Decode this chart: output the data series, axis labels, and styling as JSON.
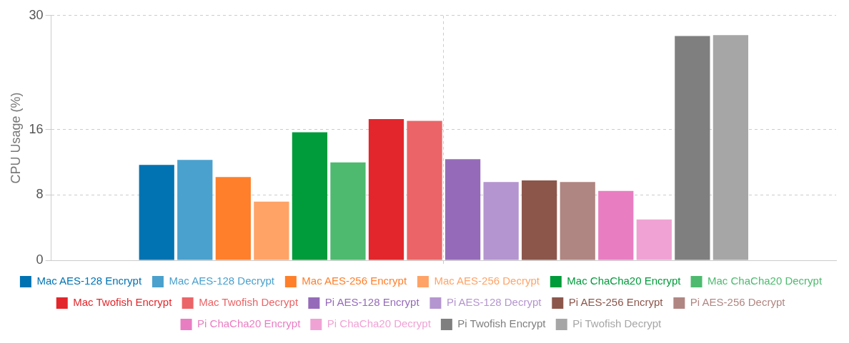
{
  "chart_data": {
    "type": "bar",
    "ylabel": "CPU Usage (%)",
    "categories": [
      null
    ],
    "ylim": [
      0,
      30
    ],
    "yticks": [
      0,
      8,
      16,
      30
    ],
    "grid": true,
    "legend": "bottom",
    "series": [
      {
        "name": "Mac AES-128 Encrypt",
        "color": "#0173b2",
        "values": [
          11.7
        ]
      },
      {
        "name": "Mac AES-128 Decrypt",
        "color": "#4aa1cd",
        "values": [
          12.3
        ]
      },
      {
        "name": "Mac AES-256 Encrypt",
        "color": "#ff7f2a",
        "values": [
          10.2
        ]
      },
      {
        "name": "Mac AES-256 Decrypt",
        "color": "#ffa366",
        "values": [
          7.2
        ]
      },
      {
        "name": "Mac ChaCha20 Encrypt",
        "color": "#009b3a",
        "values": [
          15.7
        ]
      },
      {
        "name": "Mac ChaCha20 Decrypt",
        "color": "#4dba6f",
        "values": [
          12.0
        ]
      },
      {
        "name": "Mac Twofish Encrypt",
        "color": "#e3262b",
        "values": [
          17.3
        ]
      },
      {
        "name": "Mac Twofish Decrypt",
        "color": "#eb6467",
        "values": [
          17.1
        ]
      },
      {
        "name": "Pi AES-128 Encrypt",
        "color": "#956bb9",
        "values": [
          12.4
        ]
      },
      {
        "name": "Pi AES-128 Decrypt",
        "color": "#b495cf",
        "values": [
          9.6
        ]
      },
      {
        "name": "Pi AES-256 Encrypt",
        "color": "#8c564b",
        "values": [
          9.8
        ]
      },
      {
        "name": "Pi AES-256 Decrypt",
        "color": "#b08682",
        "values": [
          9.6
        ]
      },
      {
        "name": "Pi ChaCha20 Encrypt",
        "color": "#e97dc2",
        "values": [
          8.5
        ]
      },
      {
        "name": "Pi ChaCha20 Decrypt",
        "color": "#f0a2d4",
        "values": [
          5.0
        ]
      },
      {
        "name": "Pi Twofish Encrypt",
        "color": "#7f7f7f",
        "values": [
          27.5
        ]
      },
      {
        "name": "Pi Twofish Decrypt",
        "color": "#a6a6a6",
        "values": [
          27.6
        ]
      }
    ]
  }
}
